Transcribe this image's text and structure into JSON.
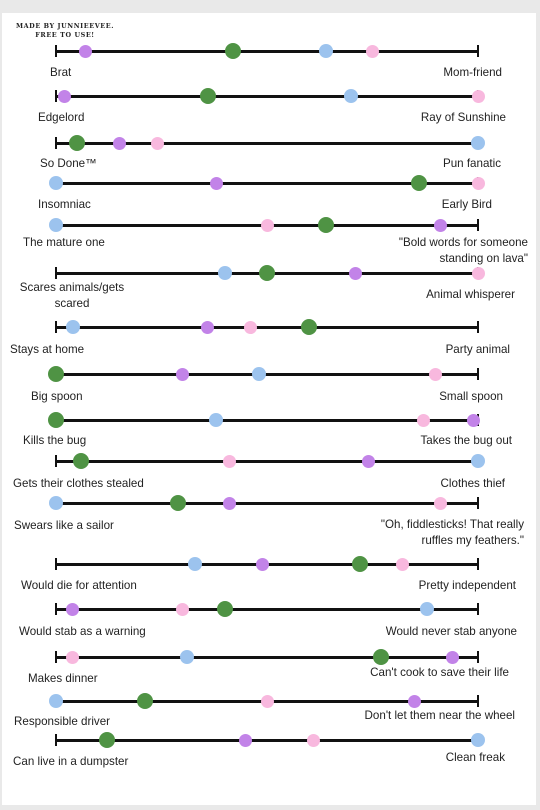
{
  "credit": {
    "line1": "MADE BY JUNNIEEVEE.",
    "line2": "FREE TO USE!"
  },
  "colors": {
    "purple": "#c283e8",
    "green": "#4f9344",
    "blue": "#9cc3ee",
    "pink": "#f8b8de",
    "line": "#111111"
  },
  "scales": [
    {
      "left": "Brat",
      "right": "Mom-friend",
      "marks": {
        "purple": 0.07,
        "green": 0.42,
        "blue": 0.64,
        "pink": 0.75
      }
    },
    {
      "left": "Edgelord",
      "right": "Ray of Sunshine",
      "marks": {
        "purple": 0.02,
        "green": 0.36,
        "blue": 0.7,
        "pink": 1.0
      }
    },
    {
      "left": "So Done™",
      "right": "Pun fanatic",
      "marks": {
        "green": 0.05,
        "purple": 0.15,
        "pink": 0.24,
        "blue": 1.0
      }
    },
    {
      "left": "Insomniac",
      "right": "Early Bird",
      "marks": {
        "blue": 0.0,
        "purple": 0.38,
        "green": 0.86,
        "pink": 1.0
      }
    },
    {
      "left": "The mature one",
      "right": "\"Bold words for someone standing on lava\"",
      "marks": {
        "blue": 0.0,
        "pink": 0.5,
        "green": 0.64,
        "purple": 0.91
      }
    },
    {
      "left": "Scares animals/gets scared",
      "right": "Animal whisperer",
      "marks": {
        "blue": 0.4,
        "green": 0.5,
        "purple": 0.71,
        "pink": 1.0
      }
    },
    {
      "left": "Stays at home",
      "right": "Party animal",
      "marks": {
        "blue": 0.04,
        "purple": 0.36,
        "pink": 0.46,
        "green": 0.6
      }
    },
    {
      "left": "Big spoon",
      "right": "Small spoon",
      "marks": {
        "green": 0.0,
        "purple": 0.3,
        "blue": 0.48,
        "pink": 0.9
      }
    },
    {
      "left": "Kills the bug",
      "right": "Takes the bug out",
      "marks": {
        "green": 0.0,
        "blue": 0.38,
        "pink": 0.87,
        "purple": 0.99
      }
    },
    {
      "left": "Gets their clothes stealed",
      "right": "Clothes thief",
      "marks": {
        "green": 0.06,
        "pink": 0.41,
        "purple": 0.74,
        "blue": 1.0
      }
    },
    {
      "left": "Swears like a sailor",
      "right": "\"Oh, fiddlesticks! That really ruffles my feathers.\"",
      "marks": {
        "blue": 0.0,
        "green": 0.29,
        "purple": 0.41,
        "pink": 0.91
      }
    },
    {
      "left": "Would die for attention",
      "right": "Pretty independent",
      "marks": {
        "blue": 0.33,
        "purple": 0.49,
        "green": 0.72,
        "pink": 0.82
      }
    },
    {
      "left": "Would stab as a warning",
      "right": "Would never stab anyone",
      "marks": {
        "purple": 0.04,
        "pink": 0.3,
        "green": 0.4,
        "blue": 0.88
      }
    },
    {
      "left": "Makes dinner",
      "right": "Can't cook to save their life",
      "marks": {
        "pink": 0.04,
        "blue": 0.31,
        "green": 0.77,
        "purple": 0.94
      }
    },
    {
      "left": "Responsible driver",
      "right": "Don't let them near the wheel",
      "marks": {
        "blue": 0.0,
        "green": 0.21,
        "pink": 0.5,
        "purple": 0.85
      }
    },
    {
      "left": "Can live in a dumpster",
      "right": "Clean freak",
      "marks": {
        "green": 0.12,
        "purple": 0.45,
        "pink": 0.61,
        "blue": 1.0
      }
    }
  ]
}
